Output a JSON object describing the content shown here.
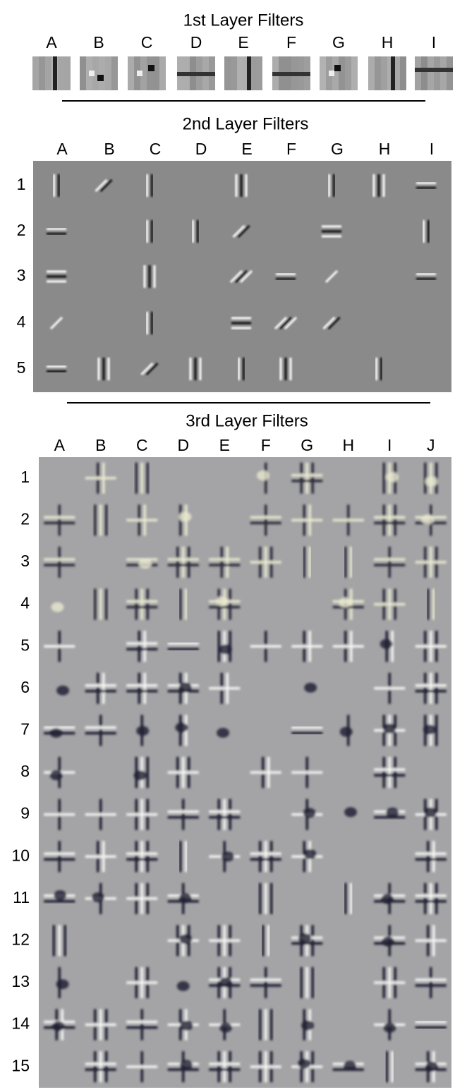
{
  "layer1": {
    "title": "1st Layer Filters",
    "columns": [
      "A",
      "B",
      "C",
      "D",
      "E",
      "F",
      "G",
      "H",
      "I"
    ]
  },
  "layer2": {
    "title": "2nd Layer Filters",
    "columns": [
      "A",
      "B",
      "C",
      "D",
      "E",
      "F",
      "G",
      "H",
      "I"
    ],
    "rows": [
      "1",
      "2",
      "3",
      "4",
      "5"
    ]
  },
  "layer3": {
    "title": "3rd Layer Filters",
    "columns": [
      "A",
      "B",
      "C",
      "D",
      "E",
      "F",
      "G",
      "H",
      "I",
      "J"
    ],
    "rows": [
      "1",
      "2",
      "3",
      "4",
      "5",
      "6",
      "7",
      "8",
      "9",
      "10",
      "11",
      "12",
      "13",
      "14",
      "15"
    ]
  }
}
